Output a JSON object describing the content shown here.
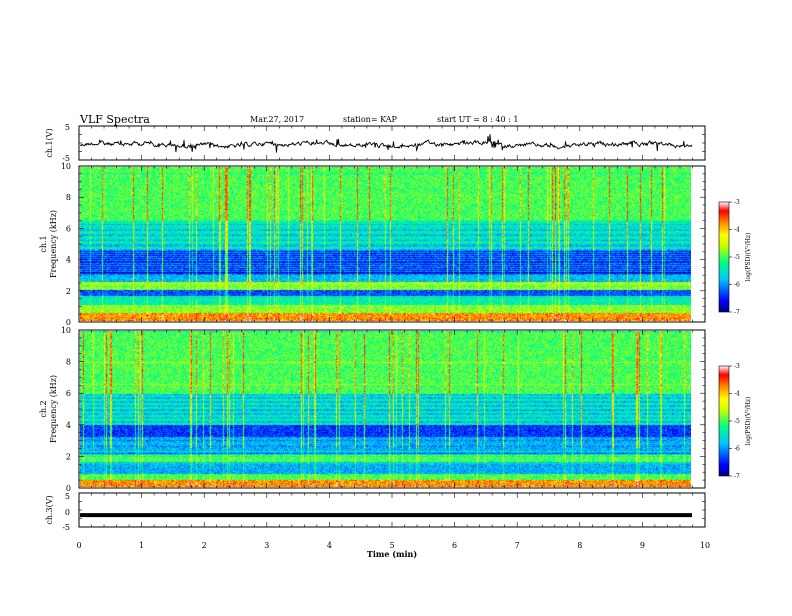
{
  "header": {
    "title": "VLF Spectra",
    "date": "Mar.27, 2017",
    "station": "station= KAP",
    "start": "start  UT =   8 : 40 : 1"
  },
  "chart_data": [
    {
      "type": "line",
      "panel": "ch1-waveform",
      "ylabel": "ch.1(V)",
      "ylim": [
        -5,
        5
      ],
      "yticks": [
        "5",
        "-5"
      ],
      "xlim": [
        0,
        10
      ],
      "trace_baseline": -0.5
    },
    {
      "type": "heatmap",
      "panel": "ch1-spectrogram",
      "ylabel_line1": "ch.1",
      "ylabel_line2": "Frequency (kHz)",
      "ylim": [
        0,
        10
      ],
      "yticks": [
        "0",
        "2",
        "4",
        "6",
        "8",
        "10"
      ],
      "xlim": [
        0,
        9.8
      ],
      "colorbar": {
        "label": "log(PSD)(V²/Hz)",
        "range": [
          -7,
          -3
        ],
        "ticks": [
          "-3",
          "-4",
          "-5",
          "-6",
          "-7"
        ],
        "colors": [
          "#000080",
          "#0000ff",
          "#00c8ff",
          "#00ff80",
          "#c8ff00",
          "#ffff00",
          "#ff8000",
          "#ff0000",
          "#ffffff"
        ]
      }
    },
    {
      "type": "heatmap",
      "panel": "ch2-spectrogram",
      "ylabel_line1": "ch.2",
      "ylabel_line2": "Frequency (kHz)",
      "ylim": [
        0,
        10
      ],
      "yticks": [
        "0",
        "2",
        "4",
        "6",
        "8",
        "10"
      ],
      "xlim": [
        0,
        9.8
      ],
      "colorbar": {
        "label": "log(PSD)(V²/Hz)",
        "range": [
          -7,
          -3
        ],
        "ticks": [
          "-3",
          "-4",
          "-5",
          "-6",
          "-7"
        ],
        "colors": [
          "#000080",
          "#0000ff",
          "#00c8ff",
          "#00ff80",
          "#c8ff00",
          "#ffff00",
          "#ff8000",
          "#ff0000",
          "#ffffff"
        ]
      }
    },
    {
      "type": "line",
      "panel": "ch3-waveform",
      "ylabel": "ch.3(V)",
      "ylim": [
        -5,
        5
      ],
      "yticks": [
        "5",
        "0",
        "-5"
      ],
      "xlim": [
        0,
        10
      ],
      "trace_value": -1.5
    }
  ],
  "xaxis": {
    "label": "Time (min)",
    "ticks": [
      "0",
      "1",
      "2",
      "3",
      "4",
      "5",
      "6",
      "7",
      "8",
      "9",
      "10"
    ]
  }
}
